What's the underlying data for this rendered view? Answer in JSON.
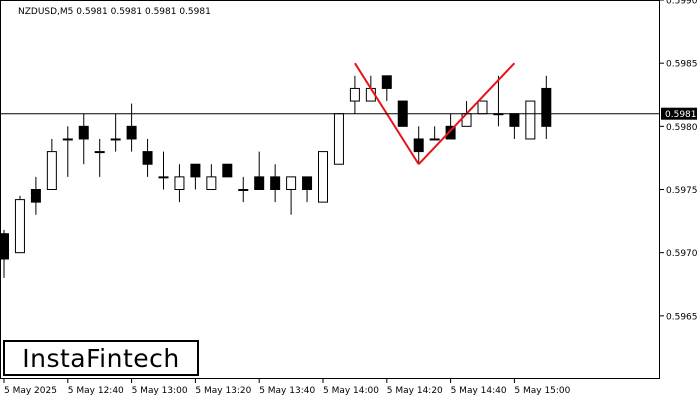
{
  "chart_data": {
    "type": "candlestick",
    "title": "NZDUSD,M5  0.5981 0.5981 0.5981 0.5981",
    "ylim": [
      0.596,
      0.599
    ],
    "y_ticks": [
      "0.5990",
      "0.5985",
      "0.5980",
      "0.5975",
      "0.5970",
      "0.5965"
    ],
    "x_ticks": [
      {
        "i": 0,
        "label": "5 May 2025"
      },
      {
        "i": 4,
        "label": "5 May 12:40"
      },
      {
        "i": 8,
        "label": "5 May 13:00"
      },
      {
        "i": 12,
        "label": "5 May 13:20"
      },
      {
        "i": 16,
        "label": "5 May 13:40"
      },
      {
        "i": 20,
        "label": "5 May 14:00"
      },
      {
        "i": 24,
        "label": "5 May 14:20"
      },
      {
        "i": 28,
        "label": "5 May 14:40"
      },
      {
        "i": 32,
        "label": "5 May 15:00"
      }
    ],
    "current_price": 0.5981,
    "current_price_label": "0.5981",
    "candles": [
      {
        "o": 0.59715,
        "h": 0.59718,
        "c": 0.59695,
        "l": 0.5968
      },
      {
        "o": 0.597,
        "h": 0.59745,
        "c": 0.59742,
        "l": 0.597
      },
      {
        "o": 0.5975,
        "h": 0.5976,
        "c": 0.5974,
        "l": 0.5973
      },
      {
        "o": 0.5975,
        "h": 0.5979,
        "c": 0.5978,
        "l": 0.5975
      },
      {
        "o": 0.5979,
        "h": 0.598,
        "c": 0.5979,
        "l": 0.5976
      },
      {
        "o": 0.598,
        "h": 0.5981,
        "c": 0.5979,
        "l": 0.5977
      },
      {
        "o": 0.5978,
        "h": 0.5979,
        "c": 0.5978,
        "l": 0.5976
      },
      {
        "o": 0.5979,
        "h": 0.5981,
        "c": 0.5979,
        "l": 0.5978
      },
      {
        "o": 0.598,
        "h": 0.59818,
        "c": 0.5979,
        "l": 0.5978
      },
      {
        "o": 0.5978,
        "h": 0.5979,
        "c": 0.5977,
        "l": 0.5976
      },
      {
        "o": 0.5976,
        "h": 0.5978,
        "c": 0.5976,
        "l": 0.5975
      },
      {
        "o": 0.5975,
        "h": 0.5977,
        "c": 0.5976,
        "l": 0.5974
      },
      {
        "o": 0.5977,
        "h": 0.5977,
        "c": 0.5976,
        "l": 0.5975
      },
      {
        "o": 0.5975,
        "h": 0.5977,
        "c": 0.5976,
        "l": 0.5975
      },
      {
        "o": 0.5977,
        "h": 0.5977,
        "c": 0.5976,
        "l": 0.5976
      },
      {
        "o": 0.5975,
        "h": 0.5976,
        "c": 0.5975,
        "l": 0.5974
      },
      {
        "o": 0.5976,
        "h": 0.5978,
        "c": 0.5975,
        "l": 0.5975
      },
      {
        "o": 0.5976,
        "h": 0.5977,
        "c": 0.5975,
        "l": 0.5974
      },
      {
        "o": 0.5975,
        "h": 0.5976,
        "c": 0.5976,
        "l": 0.5973
      },
      {
        "o": 0.5976,
        "h": 0.5976,
        "c": 0.5975,
        "l": 0.5974
      },
      {
        "o": 0.5974,
        "h": 0.5978,
        "c": 0.5978,
        "l": 0.5974
      },
      {
        "o": 0.5977,
        "h": 0.5981,
        "c": 0.5981,
        "l": 0.5977
      },
      {
        "o": 0.5982,
        "h": 0.5984,
        "c": 0.5983,
        "l": 0.5981
      },
      {
        "o": 0.5982,
        "h": 0.5984,
        "c": 0.5983,
        "l": 0.5982
      },
      {
        "o": 0.5984,
        "h": 0.5984,
        "c": 0.5983,
        "l": 0.5982
      },
      {
        "o": 0.5982,
        "h": 0.5982,
        "c": 0.598,
        "l": 0.598
      },
      {
        "o": 0.5979,
        "h": 0.598,
        "c": 0.5978,
        "l": 0.5977
      },
      {
        "o": 0.5979,
        "h": 0.598,
        "c": 0.5979,
        "l": 0.5979
      },
      {
        "o": 0.598,
        "h": 0.5981,
        "c": 0.5979,
        "l": 0.5979
      },
      {
        "o": 0.598,
        "h": 0.5982,
        "c": 0.5981,
        "l": 0.598
      },
      {
        "o": 0.5981,
        "h": 0.5982,
        "c": 0.5982,
        "l": 0.5981
      },
      {
        "o": 0.5981,
        "h": 0.5984,
        "c": 0.5981,
        "l": 0.598
      },
      {
        "o": 0.5981,
        "h": 0.5981,
        "c": 0.598,
        "l": 0.5979
      },
      {
        "o": 0.5979,
        "h": 0.5982,
        "c": 0.5982,
        "l": 0.5979
      },
      {
        "o": 0.5983,
        "h": 0.5984,
        "c": 0.598,
        "l": 0.5979
      }
    ],
    "pattern_lines": {
      "color": "#e8141c",
      "points": [
        {
          "i": 22,
          "y": 0.5985
        },
        {
          "i": 26,
          "y": 0.5977
        },
        {
          "i": 32,
          "y": 0.5985
        }
      ]
    },
    "colors": {
      "bull_body": "#ffffff",
      "bear_body": "#000000",
      "outline": "#000000"
    }
  },
  "brand": {
    "logo_text": "InstaFintech"
  }
}
